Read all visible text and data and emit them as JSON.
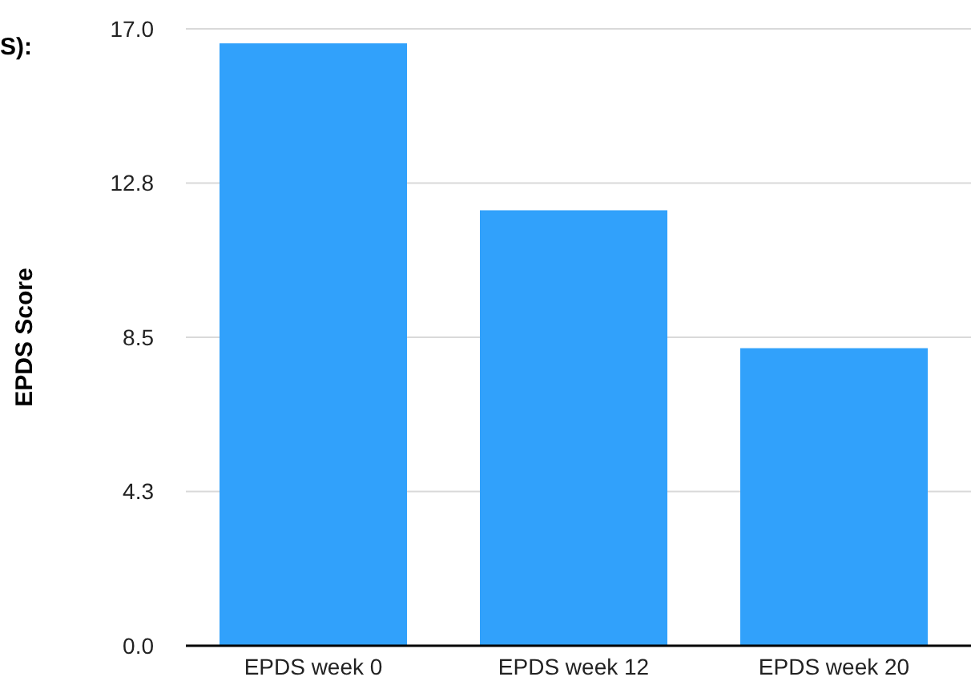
{
  "chart_data": {
    "type": "bar",
    "title": "S):",
    "ylabel": "EPDS Score",
    "categories": [
      "EPDS week 0",
      "EPDS week 12",
      "EPDS week 20"
    ],
    "values": [
      16.6,
      12.0,
      8.2
    ],
    "color": "#31a1fb",
    "ylim": [
      0,
      17
    ],
    "yticks": [
      {
        "value": 0,
        "label": "0.0"
      },
      {
        "value": 4.25,
        "label": "4.3"
      },
      {
        "value": 8.5,
        "label": "8.5"
      },
      {
        "value": 12.75,
        "label": "12.8"
      },
      {
        "value": 17,
        "label": "17.0"
      }
    ],
    "grid": "y"
  }
}
